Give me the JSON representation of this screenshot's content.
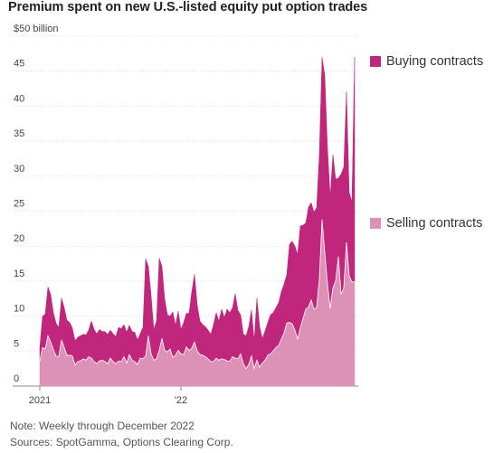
{
  "chart_data": {
    "type": "area",
    "title": "Premium spent on new U.S.-listed equity put option trades",
    "y_unit_label": "$50 billion",
    "y_ticks": [
      0,
      5,
      10,
      15,
      20,
      25,
      30,
      35,
      40,
      45,
      50
    ],
    "y_tick_labels": [
      "0",
      "5",
      "10",
      "15",
      "20",
      "25",
      "30",
      "35",
      "40",
      "45",
      "$50 billion"
    ],
    "ylim": [
      0,
      50
    ],
    "x_tick_labels": [
      "2021",
      "'22"
    ],
    "x_tick_weeks": [
      0,
      52
    ],
    "stacked": true,
    "grid": true,
    "series": [
      {
        "name": "Selling contracts",
        "color": "#dd92b5",
        "values": [
          3.5,
          5.5,
          5.3,
          7.2,
          6.3,
          5.2,
          4.3,
          4.2,
          6.6,
          5.5,
          4.4,
          4.4,
          4.3,
          3.0,
          3.5,
          3.6,
          3.9,
          3.7,
          4.2,
          4.0,
          3.5,
          3.2,
          3.6,
          3.7,
          3.5,
          3.2,
          4.0,
          3.5,
          3.2,
          3.6,
          3.5,
          4.2,
          3.3,
          4.5,
          3.7,
          3.5,
          3.1,
          4.0,
          3.9,
          4.3,
          7.2,
          4.6,
          3.7,
          3.9,
          5.1,
          6.8,
          5.1,
          4.9,
          5.3,
          4.1,
          4.4,
          5.1,
          4.6,
          4.5,
          5.6,
          5.1,
          5.4,
          6.3,
          5.0,
          4.5,
          4.4,
          4.2,
          3.9,
          3.5,
          3.5,
          4.0,
          3.7,
          3.9,
          3.8,
          3.6,
          3.5,
          4.2,
          4.0,
          3.9,
          4.6,
          3.2,
          2.5,
          3.1,
          4.3,
          2.5,
          3.7,
          2.7,
          3.3,
          3.7,
          4.4,
          4.6,
          5.0,
          5.5,
          5.8,
          6.7,
          7.6,
          9.0,
          9.1,
          8.9,
          8.0,
          6.7,
          8.3,
          9.7,
          11.0,
          11.3,
          12.3,
          11.0,
          11.2,
          15.2,
          23.8,
          19.0,
          14.5,
          11.1,
          14.0,
          15.0,
          18.5,
          13.1,
          14.0,
          20.5,
          15.7,
          14.9,
          14.9
        ]
      },
      {
        "name": "Buying contracts",
        "color": "#c0267b",
        "values": [
          2.0,
          4.5,
          5.0,
          7.0,
          6.8,
          5.3,
          4.7,
          4.2,
          6.0,
          5.7,
          5.0,
          4.7,
          4.0,
          3.5,
          3.5,
          3.6,
          3.5,
          3.6,
          3.8,
          5.3,
          4.6,
          4.3,
          4.5,
          4.1,
          4.3,
          4.2,
          4.0,
          4.0,
          3.9,
          4.8,
          4.7,
          4.6,
          4.4,
          4.2,
          4.1,
          4.2,
          3.5,
          3.5,
          4.5,
          13.9,
          9.9,
          8.4,
          4.4,
          5.4,
          13.2,
          10.3,
          7.4,
          5.3,
          4.7,
          6.5,
          4.3,
          5.6,
          3.5,
          4.6,
          4.8,
          5.3,
          8.1,
          9.7,
          6.6,
          4.8,
          4.4,
          4.3,
          4.1,
          3.9,
          5.3,
          6.5,
          5.6,
          7.1,
          6.0,
          7.4,
          7.0,
          7.0,
          9.2,
          6.9,
          5.6,
          4.2,
          4.7,
          5.4,
          6.6,
          4.0,
          8.9,
          5.8,
          3.5,
          4.2,
          4.7,
          5.6,
          5.5,
          5.7,
          6.1,
          6.8,
          7.0,
          6.9,
          11.2,
          11.8,
          12.0,
          12.1,
          14.6,
          13.3,
          12.3,
          14.3,
          13.9,
          13.9,
          14.3,
          18.0,
          23.2,
          25.4,
          19.5,
          15.9,
          19.1,
          14.6,
          11.2,
          17.2,
          17.3,
          21.6,
          12.0,
          11.4,
          32.1
        ]
      }
    ]
  },
  "notes": {
    "note": "Note: Weekly through December 2022",
    "sources": "Sources: SpotGamma, Options Clearing Corp."
  }
}
